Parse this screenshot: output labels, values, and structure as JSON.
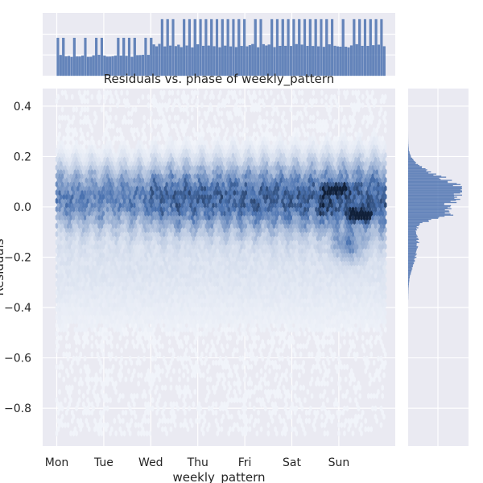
{
  "chart_data": {
    "type": "hexbin-joint",
    "title": "Residuals vs. phase of weekly_pattern",
    "xlabel": "weekly_pattern",
    "ylabel": "Residuals",
    "x_ticks": [
      "Mon",
      "Tue",
      "Wed",
      "Thu",
      "Fri",
      "Sat",
      "Sun"
    ],
    "x_tick_values": [
      0,
      1,
      2,
      3,
      4,
      5,
      6
    ],
    "xlim": [
      -0.3,
      7.2
    ],
    "y_ticks": [
      "0.4",
      "0.2",
      "0.0",
      "−0.2",
      "−0.4",
      "−0.6",
      "−0.8"
    ],
    "y_tick_values": [
      0.4,
      0.2,
      0.0,
      -0.2,
      -0.4,
      -0.6,
      -0.8
    ],
    "ylim": [
      -0.95,
      0.47
    ],
    "data_xrange": [
      0,
      7
    ],
    "data_yrange": [
      -0.9,
      0.46
    ],
    "colors": {
      "background": "#eaeaf2",
      "grid": "#ffffff",
      "hex_dark": "#10203a",
      "hex_mid": "#4a72b0",
      "hex_light": "#f4f6fb",
      "marginal": "#4c72b0"
    },
    "top_marginal": {
      "description_values_relative": true,
      "segments": [
        {
          "x_start": 0.0,
          "x_end": 2.0,
          "base": 0.35,
          "peak": 0.67
        },
        {
          "x_start": 2.0,
          "x_end": 7.0,
          "base": 0.53,
          "peak": 1.0
        }
      ]
    },
    "right_marginal": {
      "peak_y": 0.06,
      "secondary_peak_y": -0.03,
      "spread": 0.08,
      "range": [
        -0.37,
        0.3
      ]
    },
    "grid": true
  }
}
